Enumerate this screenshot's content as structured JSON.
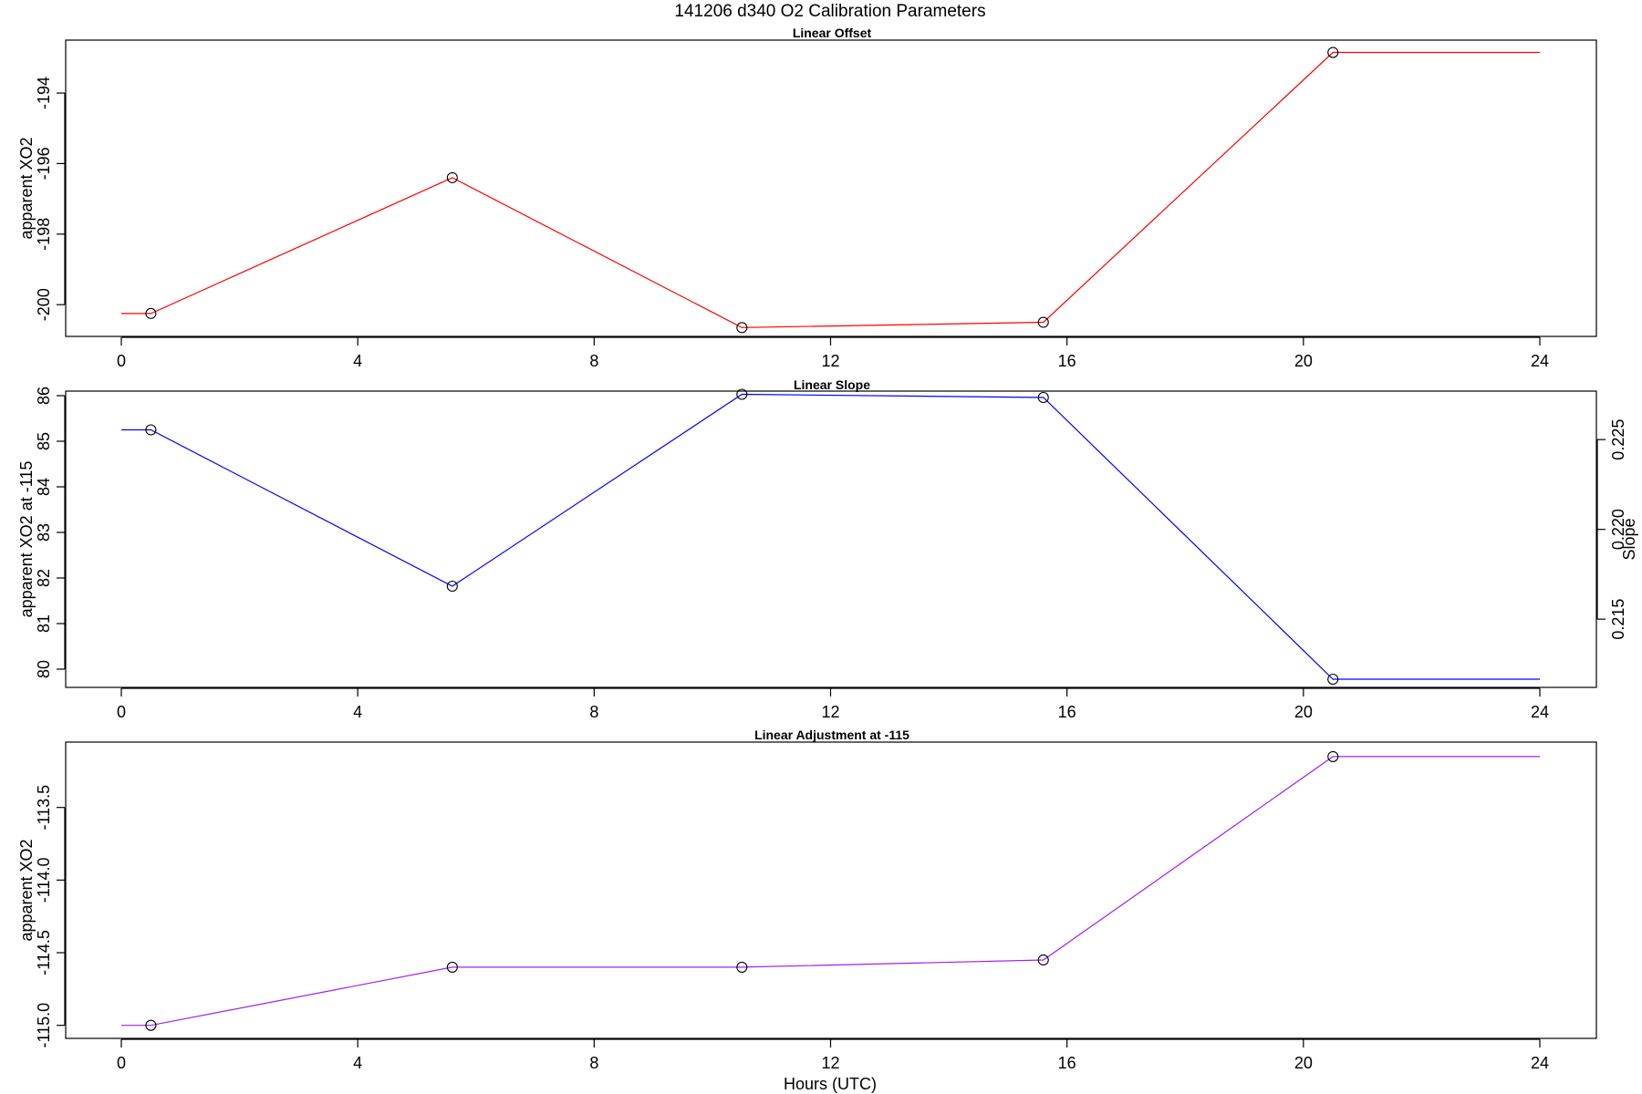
{
  "title": "141206   d340   O2 Calibration Parameters",
  "xlabel": "Hours (UTC)",
  "chart_data": [
    {
      "type": "line",
      "title": "Linear Offset",
      "xlabel": "",
      "ylabel": "apparent XO2",
      "color": "#ff0000",
      "xlim": [
        0,
        24
      ],
      "ylim": [
        -200.9,
        -192.5
      ],
      "xticks": [
        0,
        4,
        8,
        12,
        16,
        20,
        24
      ],
      "yticks": [
        -200,
        -198,
        -196,
        -194
      ],
      "step_start": [
        0,
        -200.25
      ],
      "step_end": [
        24,
        -192.85
      ],
      "x": [
        0.5,
        5.6,
        10.5,
        15.6,
        20.5
      ],
      "y": [
        -200.25,
        -196.4,
        -200.65,
        -200.5,
        -192.85
      ]
    },
    {
      "type": "line",
      "title": "Linear Slope",
      "xlabel": "",
      "ylabel": "apparent XO2 at -115",
      "y2label": "Slope",
      "color": "#0000ff",
      "xlim": [
        0,
        24
      ],
      "ylim": [
        79.6,
        86.1
      ],
      "y2lim": [
        0.2112,
        0.2277
      ],
      "xticks": [
        0,
        4,
        8,
        12,
        16,
        20,
        24
      ],
      "yticks": [
        80,
        81,
        82,
        83,
        84,
        85,
        86
      ],
      "y2ticks": [
        0.215,
        0.22,
        0.225
      ],
      "y2ticklabels": [
        "0.215",
        "0.220",
        "0.225"
      ],
      "step_start": [
        0,
        85.25
      ],
      "step_end": [
        24,
        79.78
      ],
      "x": [
        0.5,
        5.6,
        10.5,
        15.6,
        20.5
      ],
      "y": [
        85.25,
        81.82,
        86.03,
        85.96,
        79.78
      ]
    },
    {
      "type": "line",
      "title": "Linear Adjustment at -115",
      "xlabel": "Hours (UTC)",
      "ylabel": "apparent XO2",
      "color": "#a020f0",
      "xlim": [
        0,
        24
      ],
      "ylim": [
        -115.09,
        -113.05
      ],
      "xticks": [
        0,
        4,
        8,
        12,
        16,
        20,
        24
      ],
      "yticks": [
        -115.0,
        -114.5,
        -114.0,
        -113.5
      ],
      "yticklabels": [
        "-115.0",
        "-114.5",
        "-114.0",
        "-113.5"
      ],
      "step_start": [
        0,
        -115.0
      ],
      "step_end": [
        24,
        -113.15
      ],
      "x": [
        0.5,
        5.6,
        10.5,
        15.6,
        20.5
      ],
      "y": [
        -115.0,
        -114.6,
        -114.6,
        -114.55,
        -113.15
      ]
    }
  ]
}
